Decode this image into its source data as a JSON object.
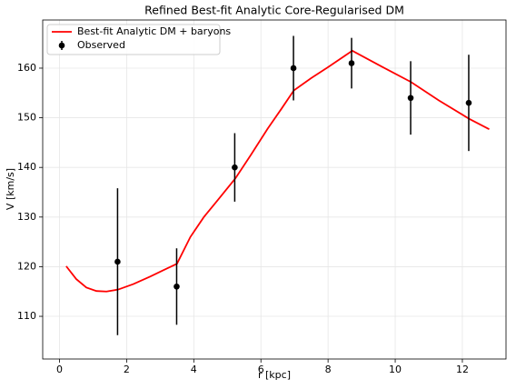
{
  "chart_data": {
    "type": "line",
    "title": "Refined Best-fit Analytic Core-Regularised DM",
    "x_label": "r [kpc]",
    "y_label": "V [km/s]",
    "xlim": [
      -0.5,
      13.3
    ],
    "ylim": [
      101.4,
      169.7
    ],
    "xticks": [
      0,
      2,
      4,
      6,
      8,
      10,
      12
    ],
    "yticks": [
      110,
      120,
      130,
      140,
      150,
      160
    ],
    "grid": true,
    "legend": "upper left",
    "series": [
      {
        "name": "Best-fit Analytic DM + baryons",
        "color": "#ff0000",
        "style": "line",
        "x": [
          0.2,
          0.5,
          0.8,
          1.1,
          1.4,
          1.75,
          2.2,
          2.7,
          3.1,
          3.5,
          3.9,
          4.3,
          4.7,
          5.24,
          5.7,
          6.2,
          6.6,
          6.98,
          7.5,
          8.0,
          8.72,
          9.6,
          10.47,
          11.3,
          12.2,
          12.8
        ],
        "values": [
          120.1,
          117.5,
          115.8,
          115.1,
          115.0,
          115.4,
          116.5,
          118.0,
          119.3,
          120.6,
          126.0,
          130.0,
          133.3,
          137.8,
          142.5,
          147.8,
          151.7,
          155.5,
          158.0,
          160.2,
          163.5,
          160.3,
          157.2,
          153.5,
          149.8,
          147.7
        ]
      },
      {
        "name": "Observed",
        "color": "#000000",
        "style": "errorbar",
        "x": [
          1.73,
          3.49,
          5.22,
          6.97,
          8.7,
          10.46,
          12.19
        ],
        "values": [
          121,
          116,
          140,
          160,
          161,
          154,
          153
        ],
        "errors": [
          14.8,
          7.7,
          6.9,
          6.5,
          5.1,
          7.4,
          9.7
        ]
      }
    ]
  }
}
